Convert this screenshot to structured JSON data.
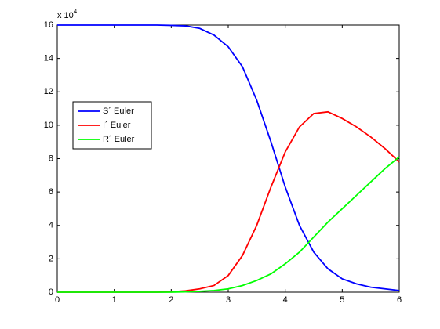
{
  "chart_data": {
    "type": "line",
    "y_multiplier": {
      "base": "x 10",
      "exponent": "4"
    },
    "x": [
      0,
      0.25,
      0.5,
      0.75,
      1,
      1.25,
      1.5,
      1.75,
      2,
      2.25,
      2.5,
      2.75,
      3,
      3.25,
      3.5,
      3.75,
      4,
      4.25,
      4.5,
      4.75,
      5,
      5.25,
      5.5,
      5.75,
      6
    ],
    "series": [
      {
        "name": "S´ Euler",
        "color": "#0000ff",
        "values": [
          16,
          16,
          16,
          16,
          16,
          16,
          16,
          16,
          15.98,
          15.95,
          15.8,
          15.4,
          14.7,
          13.5,
          11.5,
          9,
          6.3,
          4,
          2.4,
          1.4,
          0.8,
          0.5,
          0.3,
          0.2,
          0.1
        ]
      },
      {
        "name": "I´ Euler",
        "color": "#ff0000",
        "values": [
          0,
          0,
          0,
          0,
          0,
          0,
          0,
          0,
          0.02,
          0.08,
          0.2,
          0.4,
          1,
          2.2,
          4,
          6.3,
          8.4,
          9.9,
          10.7,
          10.8,
          10.4,
          9.9,
          9.3,
          8.6,
          7.8
        ]
      },
      {
        "name": "R´ Euler",
        "color": "#00ff00",
        "values": [
          0,
          0,
          0,
          0,
          0,
          0,
          0,
          0,
          0,
          0.02,
          0.05,
          0.1,
          0.2,
          0.4,
          0.7,
          1.1,
          1.7,
          2.4,
          3.3,
          4.2,
          5,
          5.8,
          6.6,
          7.4,
          8.1
        ]
      }
    ],
    "xlim": [
      0,
      6
    ],
    "xticks": [
      0,
      1,
      2,
      3,
      4,
      5,
      6
    ],
    "ylim": [
      0,
      16
    ],
    "yticks": [
      0,
      2,
      4,
      6,
      8,
      10,
      12,
      14,
      16
    ],
    "grid": false,
    "legend": "upper-left"
  }
}
